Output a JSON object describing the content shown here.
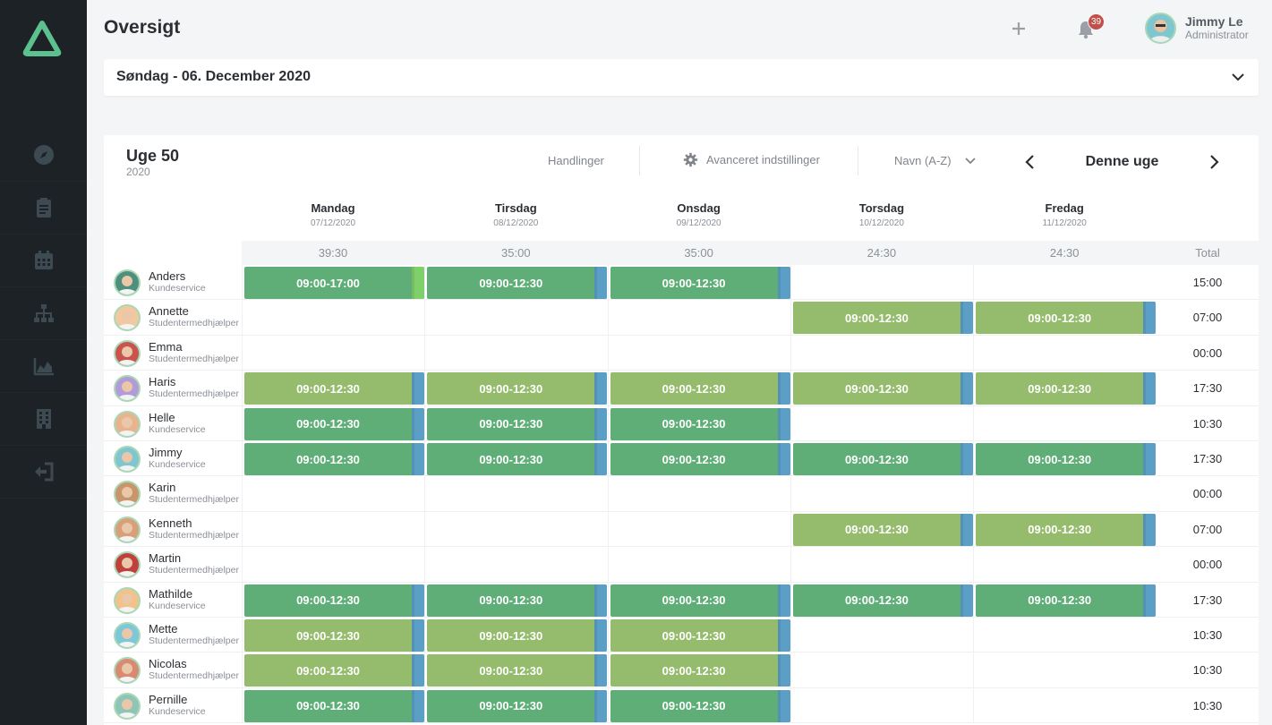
{
  "header": {
    "title": "Oversigt",
    "notification_count": "39",
    "user_name": "Jimmy Le",
    "user_role": "Administrator"
  },
  "datebar": {
    "label": "Søndag - 06. December 2020"
  },
  "schedule": {
    "week_title": "Uge 50",
    "week_year": "2020",
    "actions_label": "Handlinger",
    "advanced_label": "Avanceret indstillinger",
    "sort_value": "Navn (A-Z)",
    "week_nav_label": "Denne uge",
    "days": [
      {
        "name": "Mandag",
        "date": "07/12/2020",
        "sum": "39:30"
      },
      {
        "name": "Tirsdag",
        "date": "08/12/2020",
        "sum": "35:00"
      },
      {
        "name": "Onsdag",
        "date": "09/12/2020",
        "sum": "35:00"
      },
      {
        "name": "Torsdag",
        "date": "10/12/2020",
        "sum": "24:30"
      },
      {
        "name": "Fredag",
        "date": "11/12/2020",
        "sum": "24:30"
      }
    ],
    "total_label": "Total",
    "employees": [
      {
        "name": "Anders",
        "dept": "Kundeservice",
        "shifts": [
          "09:00-17:00",
          "09:00-12:30",
          "09:00-12:30",
          "",
          ""
        ],
        "total": "15:00"
      },
      {
        "name": "Annette",
        "dept": "Studentermedhjælper",
        "shifts": [
          "",
          "",
          "",
          "09:00-12:30",
          "09:00-12:30"
        ],
        "total": "07:00"
      },
      {
        "name": "Emma",
        "dept": "Studentermedhjælper",
        "shifts": [
          "",
          "",
          "",
          "",
          ""
        ],
        "total": "00:00"
      },
      {
        "name": "Haris",
        "dept": "Studentermedhjælper",
        "shifts": [
          "09:00-12:30",
          "09:00-12:30",
          "09:00-12:30",
          "09:00-12:30",
          "09:00-12:30"
        ],
        "total": "17:30"
      },
      {
        "name": "Helle",
        "dept": "Kundeservice",
        "shifts": [
          "09:00-12:30",
          "09:00-12:30",
          "09:00-12:30",
          "",
          ""
        ],
        "total": "10:30"
      },
      {
        "name": "Jimmy",
        "dept": "Kundeservice",
        "shifts": [
          "09:00-12:30",
          "09:00-12:30",
          "09:00-12:30",
          "09:00-12:30",
          "09:00-12:30"
        ],
        "total": "17:30"
      },
      {
        "name": "Karin",
        "dept": "Studentermedhjælper",
        "shifts": [
          "",
          "",
          "",
          "",
          ""
        ],
        "total": "00:00"
      },
      {
        "name": "Kenneth",
        "dept": "Studentermedhjælper",
        "shifts": [
          "",
          "",
          "",
          "09:00-12:30",
          "09:00-12:30"
        ],
        "total": "07:00"
      },
      {
        "name": "Martin",
        "dept": "Studentermedhjælper",
        "shifts": [
          "",
          "",
          "",
          "",
          ""
        ],
        "total": "00:00"
      },
      {
        "name": "Mathilde",
        "dept": "Kundeservice",
        "shifts": [
          "09:00-12:30",
          "09:00-12:30",
          "09:00-12:30",
          "09:00-12:30",
          "09:00-12:30"
        ],
        "total": "17:30"
      },
      {
        "name": "Mette",
        "dept": "Studentermedhjælper",
        "shifts": [
          "09:00-12:30",
          "09:00-12:30",
          "09:00-12:30",
          "",
          ""
        ],
        "total": "10:30"
      },
      {
        "name": "Nicolas",
        "dept": "Studentermedhjælper",
        "shifts": [
          "09:00-12:30",
          "09:00-12:30",
          "09:00-12:30",
          "",
          ""
        ],
        "total": "10:30"
      },
      {
        "name": "Pernille",
        "dept": "Kundeservice",
        "shifts": [
          "09:00-12:30",
          "09:00-12:30",
          "09:00-12:30",
          "",
          ""
        ],
        "total": "10:30"
      }
    ]
  },
  "colors": {
    "sidebar_bg": "#1d2227",
    "shift_kundeservice": "#5fae78",
    "shift_student": "#95bb6c",
    "shift_tab": "#5b9fc6",
    "shift_tab_full": "#7fd06a"
  },
  "icons": {
    "nav": [
      "compass-icon",
      "clipboard-icon",
      "calendar-icon",
      "org-chart-icon",
      "area-chart-icon",
      "building-icon",
      "logout-icon"
    ]
  }
}
